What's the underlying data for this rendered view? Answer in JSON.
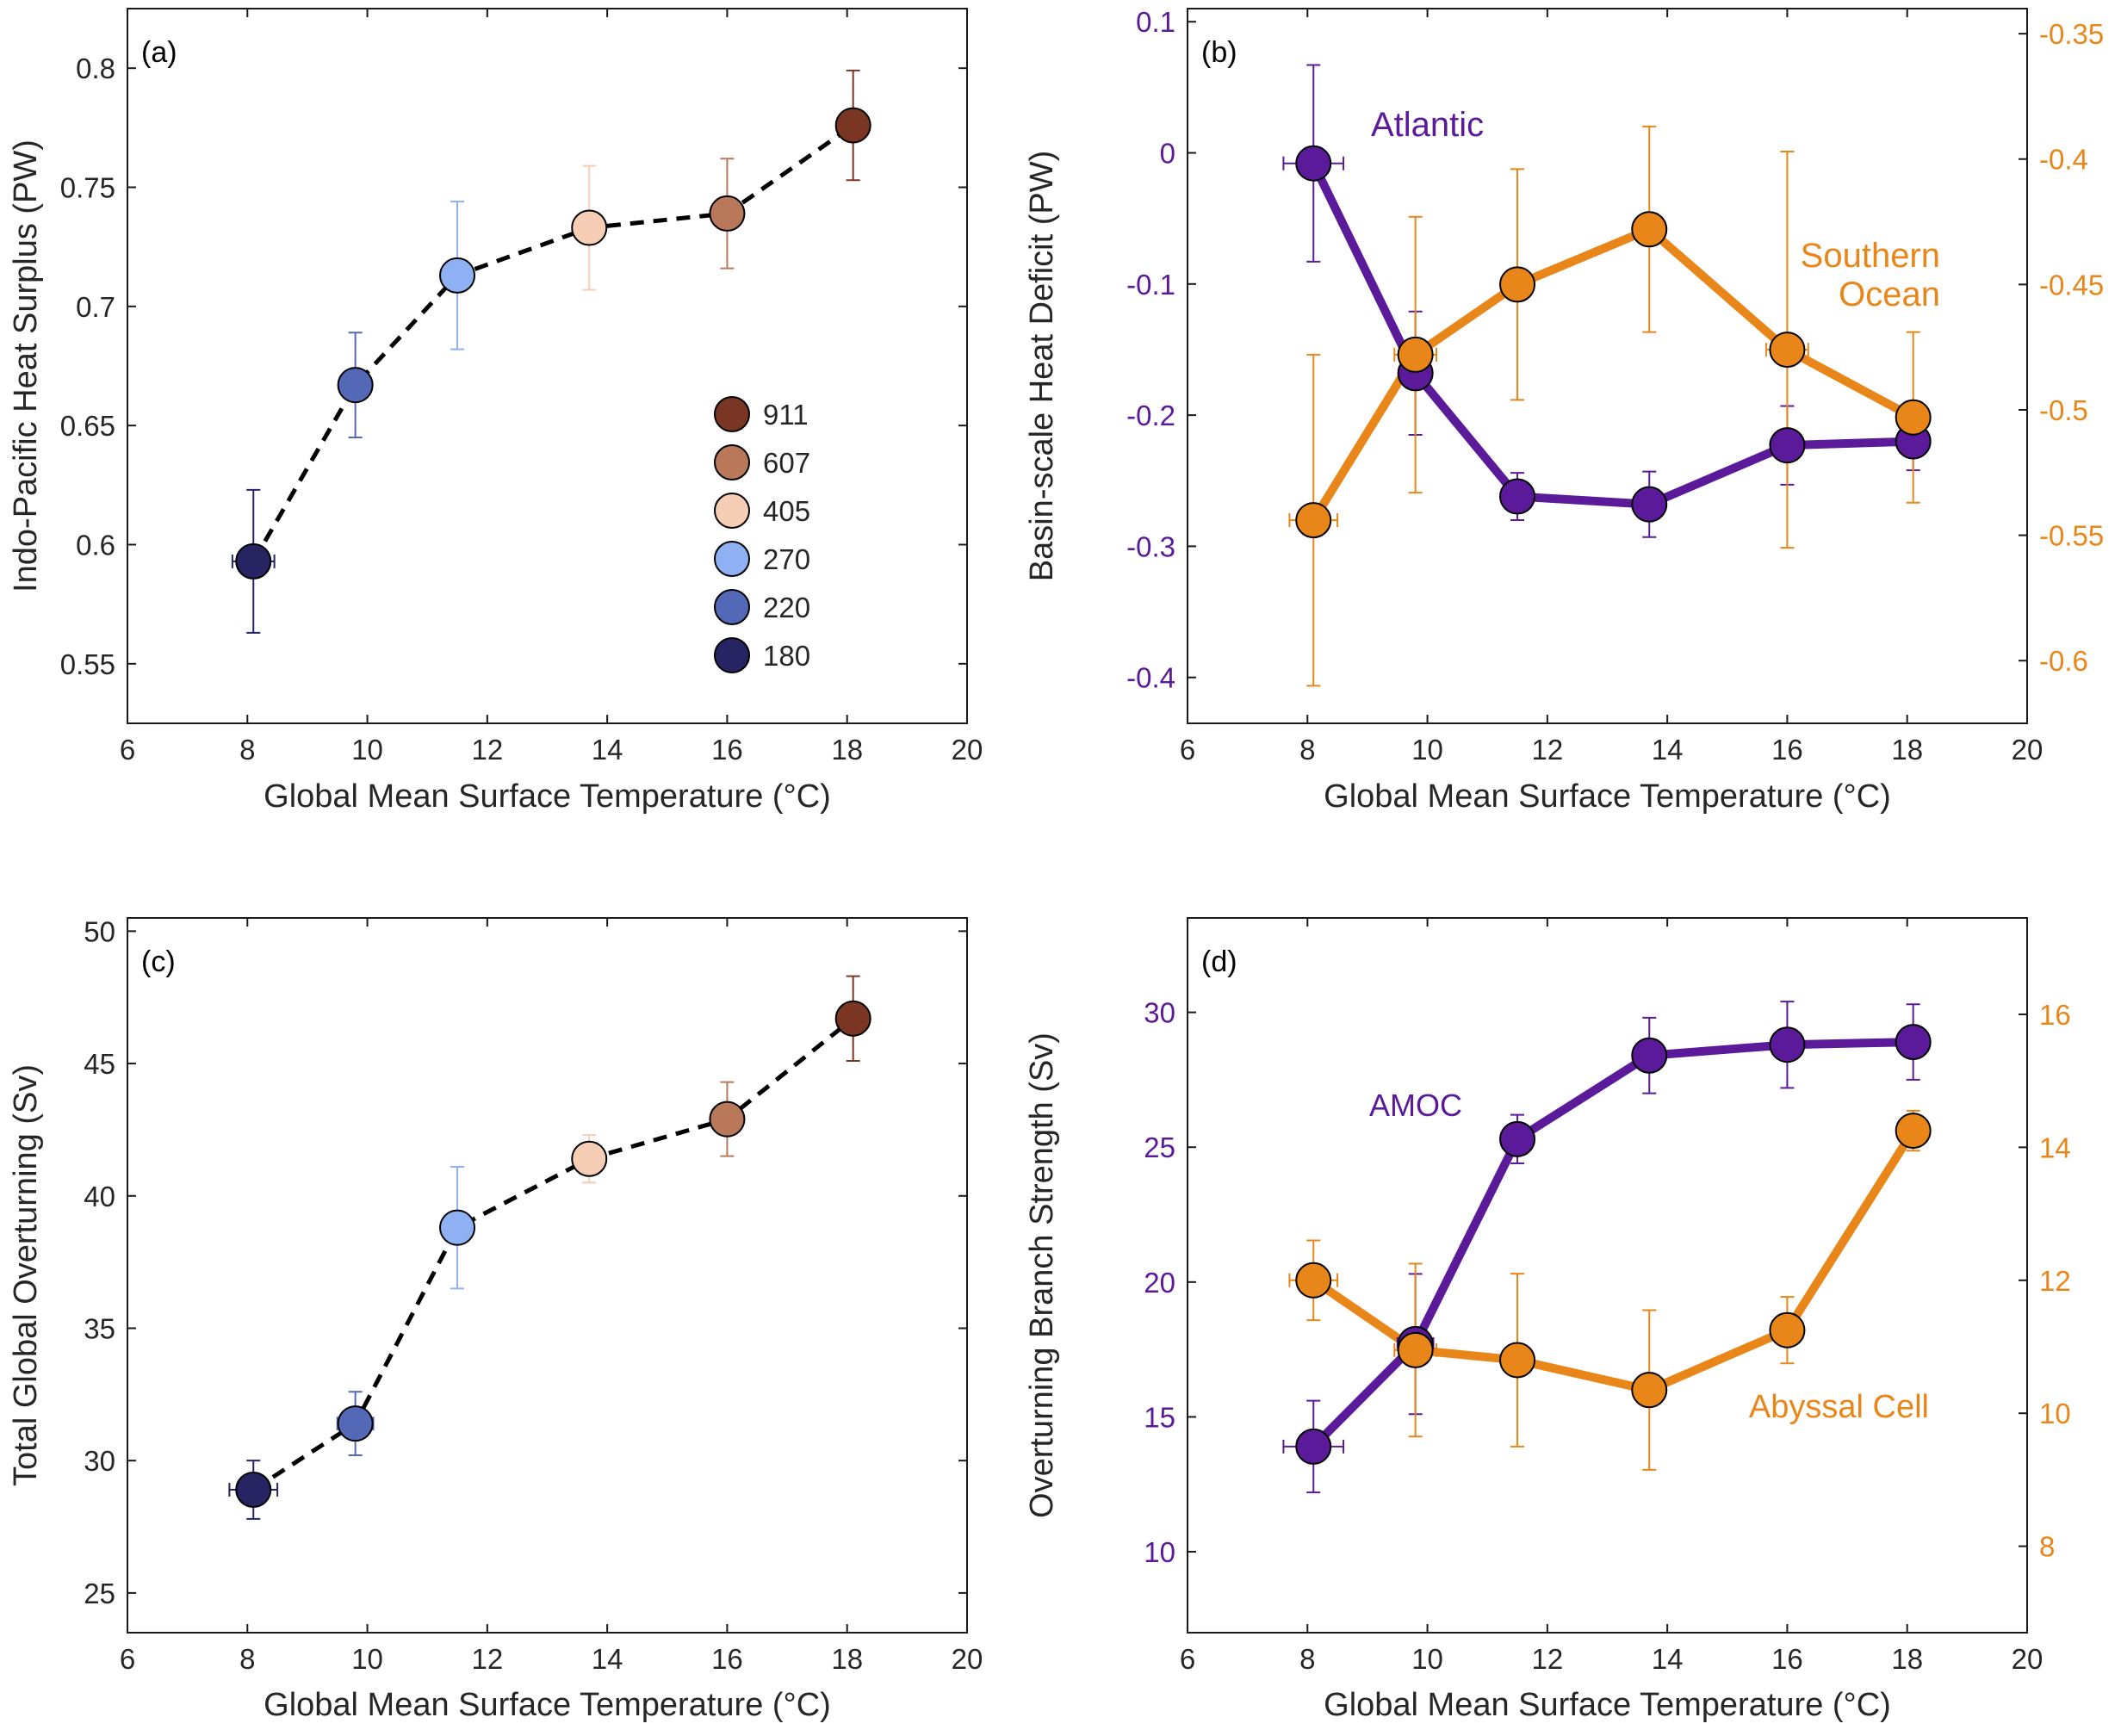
{
  "colors": {
    "atlantic": "#5b1a99",
    "southern": "#e8861a",
    "co2_911": "#7a3622",
    "co2_607": "#b9785a",
    "co2_405": "#f6cdb5",
    "co2_270": "#8fb1f4",
    "co2_220": "#5468b8",
    "co2_180": "#262463"
  },
  "legend": {
    "items": [
      {
        "label": "911",
        "color": "#7a3622"
      },
      {
        "label": "607",
        "color": "#b9785a"
      },
      {
        "label": "405",
        "color": "#f6cdb5"
      },
      {
        "label": "270",
        "color": "#8fb1f4"
      },
      {
        "label": "220",
        "color": "#5468b8"
      },
      {
        "label": "180",
        "color": "#262463"
      }
    ]
  },
  "chart_data": [
    {
      "id": "a",
      "panel_label": "(a)",
      "type": "scatter",
      "xlabel": "Global Mean Surface Temperature (°C)",
      "ylabel": "Indo-Pacific Heat Surplus (PW)",
      "xlim": [
        6,
        20
      ],
      "ylim": [
        0.525,
        0.825
      ],
      "xticks": [
        6,
        8,
        10,
        12,
        14,
        16,
        18,
        20
      ],
      "yticks": [
        "0.55",
        "0.6",
        "0.65",
        "0.7",
        "0.75",
        "0.8"
      ],
      "line_style": "dashed",
      "points": [
        {
          "x": 8.1,
          "y": 0.593,
          "yerr": 0.03,
          "xerr": 0.35,
          "color": "#262463"
        },
        {
          "x": 9.8,
          "y": 0.667,
          "yerr": 0.022,
          "xerr": 0.25,
          "color": "#5468b8"
        },
        {
          "x": 11.5,
          "y": 0.713,
          "yerr": 0.031,
          "xerr": 0.0,
          "color": "#8fb1f4"
        },
        {
          "x": 13.7,
          "y": 0.733,
          "yerr": 0.026,
          "xerr": 0.0,
          "color": "#f6cdb5"
        },
        {
          "x": 16.0,
          "y": 0.739,
          "yerr": 0.023,
          "xerr": 0.0,
          "color": "#b9785a"
        },
        {
          "x": 18.1,
          "y": 0.776,
          "yerr": 0.023,
          "xerr": 0.0,
          "color": "#7a3622"
        }
      ]
    },
    {
      "id": "b",
      "panel_label": "(b)",
      "type": "line",
      "xlabel": "Global Mean Surface Temperature (°C)",
      "ylabel": "Basin-scale Heat Deficit (PW)",
      "xlim": [
        6,
        20
      ],
      "ylim": [
        -0.435,
        0.11
      ],
      "y2lim": [
        -0.625,
        -0.34
      ],
      "xticks": [
        6,
        8,
        10,
        12,
        14,
        16,
        18,
        20
      ],
      "yticks": [
        "-0.4",
        "-0.3",
        "-0.2",
        "-0.1",
        "0",
        "0.1"
      ],
      "y2ticks": [
        "-0.6",
        "-0.55",
        "-0.5",
        "-0.45",
        "-0.4",
        "-0.35"
      ],
      "series": [
        {
          "name": "Atlantic",
          "axis": "left",
          "color": "#5b1a99",
          "points": [
            {
              "x": 8.1,
              "y": -0.008,
              "yerr": 0.075,
              "xerr": 0.5
            },
            {
              "x": 9.8,
              "y": -0.168,
              "yerr": 0.047,
              "xerr": 0.0
            },
            {
              "x": 11.5,
              "y": -0.262,
              "yerr": 0.018,
              "xerr": 0.0
            },
            {
              "x": 13.7,
              "y": -0.268,
              "yerr": 0.025,
              "xerr": 0.0
            },
            {
              "x": 16.0,
              "y": -0.223,
              "yerr": 0.03,
              "xerr": 0.0
            },
            {
              "x": 18.1,
              "y": -0.22,
              "yerr": 0.022,
              "xerr": 0.0
            }
          ]
        },
        {
          "name": "Southern Ocean",
          "name_lines": [
            "Southern",
            "Ocean"
          ],
          "axis": "right",
          "color": "#e8861a",
          "points": [
            {
              "x": 8.1,
              "y": -0.544,
              "yerr": 0.066,
              "xerr": 0.4
            },
            {
              "x": 9.8,
              "y": -0.478,
              "yerr": 0.055,
              "xerr": 0.35
            },
            {
              "x": 11.5,
              "y": -0.45,
              "yerr": 0.046,
              "xerr": 0.0
            },
            {
              "x": 13.7,
              "y": -0.428,
              "yerr": 0.041,
              "xerr": 0.0
            },
            {
              "x": 16.0,
              "y": -0.476,
              "yerr": 0.079,
              "xerr": 0.35
            },
            {
              "x": 18.1,
              "y": -0.503,
              "yerr": 0.034,
              "xerr": 0.0
            }
          ]
        }
      ]
    },
    {
      "id": "c",
      "panel_label": "(c)",
      "type": "scatter",
      "xlabel": "Global Mean Surface Temperature (°C)",
      "ylabel": "Total Global Overturning (Sv)",
      "xlim": [
        6,
        20
      ],
      "ylim": [
        23.5,
        50.5
      ],
      "xticks": [
        6,
        8,
        10,
        12,
        14,
        16,
        18,
        20
      ],
      "yticks": [
        "25",
        "30",
        "35",
        "40",
        "45",
        "50"
      ],
      "line_style": "dashed",
      "points": [
        {
          "x": 8.1,
          "y": 28.9,
          "yerr": 1.1,
          "xerr": 0.4,
          "color": "#262463"
        },
        {
          "x": 9.8,
          "y": 31.4,
          "yerr": 1.2,
          "xerr": 0.3,
          "color": "#5468b8"
        },
        {
          "x": 11.5,
          "y": 38.8,
          "yerr": 2.3,
          "xerr": 0.0,
          "color": "#8fb1f4"
        },
        {
          "x": 13.7,
          "y": 41.4,
          "yerr": 0.9,
          "xerr": 0.0,
          "color": "#f6cdb5"
        },
        {
          "x": 16.0,
          "y": 42.9,
          "yerr": 1.4,
          "xerr": 0.0,
          "color": "#b9785a"
        },
        {
          "x": 18.1,
          "y": 46.7,
          "yerr": 1.6,
          "xerr": 0.0,
          "color": "#7a3622"
        }
      ]
    },
    {
      "id": "d",
      "panel_label": "(d)",
      "type": "line",
      "xlabel": "Global Mean Surface Temperature (°C)",
      "ylabel": "Overturning Branch Strength (Sv)",
      "xlim": [
        6,
        20
      ],
      "ylim": [
        7,
        33.5
      ],
      "y2lim": [
        6.7,
        17.45
      ],
      "xticks": [
        6,
        8,
        10,
        12,
        14,
        16,
        18,
        20
      ],
      "yticks": [
        "10",
        "15",
        "20",
        "25",
        "30"
      ],
      "y2ticks": [
        "8",
        "10",
        "12",
        "14",
        "16"
      ],
      "series": [
        {
          "name": "AMOC",
          "axis": "left",
          "color": "#5b1a99",
          "points": [
            {
              "x": 8.1,
              "y": 13.9,
              "yerr": 1.7,
              "xerr": 0.5
            },
            {
              "x": 9.8,
              "y": 17.7,
              "yerr": 2.6,
              "xerr": 0.3
            },
            {
              "x": 11.5,
              "y": 25.3,
              "yerr": 0.9,
              "xerr": 0.0
            },
            {
              "x": 13.7,
              "y": 28.4,
              "yerr": 1.4,
              "xerr": 0.0
            },
            {
              "x": 16.0,
              "y": 28.8,
              "yerr": 1.6,
              "xerr": 0.0
            },
            {
              "x": 18.1,
              "y": 28.9,
              "yerr": 1.4,
              "xerr": 0.0
            }
          ]
        },
        {
          "name": "Abyssal Cell",
          "axis": "right",
          "color": "#e8861a",
          "points": [
            {
              "x": 8.1,
              "y": 12.0,
              "yerr": 0.6,
              "xerr": 0.4
            },
            {
              "x": 9.8,
              "y": 10.95,
              "yerr": 1.3,
              "xerr": 0.35
            },
            {
              "x": 11.5,
              "y": 10.8,
              "yerr": 1.3,
              "xerr": 0.0
            },
            {
              "x": 13.7,
              "y": 10.35,
              "yerr": 1.2,
              "xerr": 0.0
            },
            {
              "x": 16.0,
              "y": 11.25,
              "yerr": 0.5,
              "xerr": 0.0
            },
            {
              "x": 18.1,
              "y": 14.25,
              "yerr": 0.3,
              "xerr": 0.0
            }
          ]
        }
      ]
    }
  ]
}
